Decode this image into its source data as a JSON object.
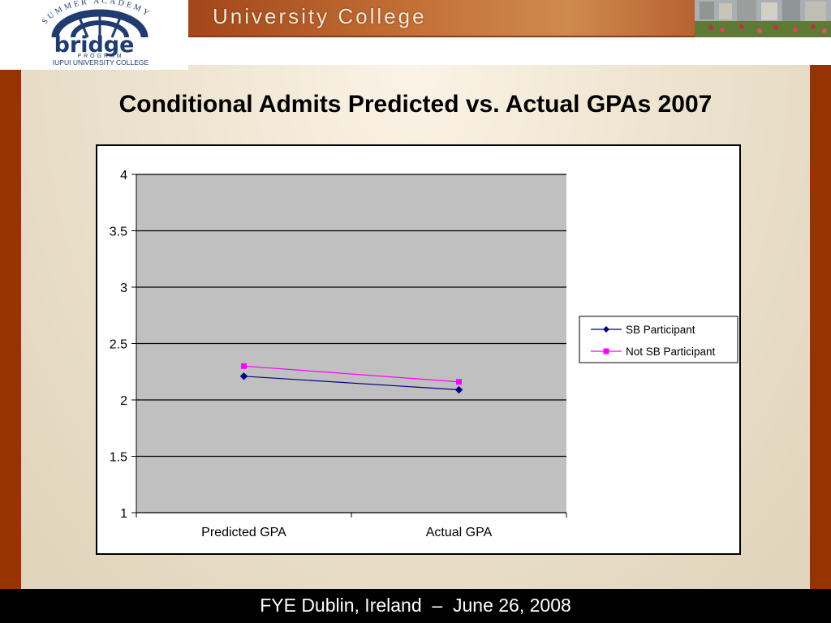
{
  "header": {
    "logo": {
      "arc_text": "SUMMER ACADEMY",
      "wordmark": "bridge",
      "program_text": "PROGRAM",
      "tagline": "IUPUI UNIVERSITY COLLEGE"
    },
    "banner_title": "University College"
  },
  "slide": {
    "title": "Conditional Admits Predicted vs. Actual GPAs 2007"
  },
  "footer": {
    "text": "FYE Dublin, Ireland  –  June 26, 2008"
  },
  "colors": {
    "brand_rust": "#973300",
    "plot_area": "#c0c0c0",
    "series_sb": "#000080",
    "series_not_sb": "#ff00ff"
  },
  "chart_data": {
    "type": "line",
    "title": "",
    "xlabel": "",
    "ylabel": "",
    "categories": [
      "Predicted GPA",
      "Actual GPA"
    ],
    "series": [
      {
        "name": "SB Participant",
        "values": [
          2.21,
          2.09
        ],
        "color": "#000080",
        "marker": "diamond"
      },
      {
        "name": "Not SB Participant",
        "values": [
          2.3,
          2.16
        ],
        "color": "#ff00ff",
        "marker": "square"
      }
    ],
    "ylim": [
      1,
      4
    ],
    "yticks": [
      "1",
      "1.5",
      "2",
      "2.5",
      "3",
      "3.5",
      "4"
    ],
    "grid": true,
    "legend": "right"
  }
}
